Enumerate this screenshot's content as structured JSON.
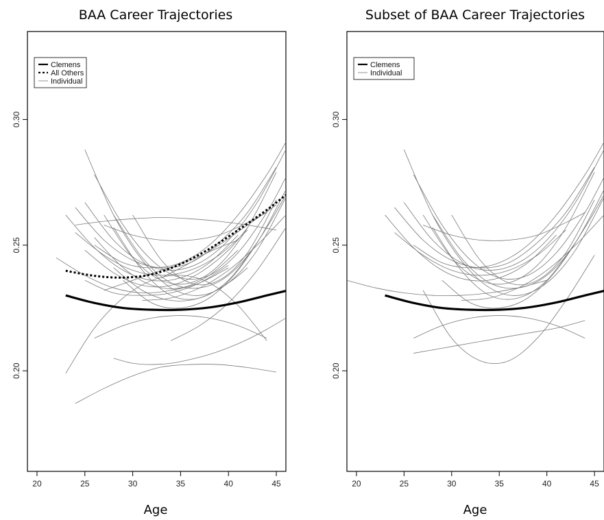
{
  "chart_data": [
    {
      "type": "line",
      "title": "BAA Career Trajectories",
      "xlabel": "Age",
      "ylabel": "",
      "xlim": [
        19,
        46
      ],
      "ylim": [
        0.16,
        0.335
      ],
      "xticks": [
        20,
        25,
        30,
        35,
        40,
        45
      ],
      "yticks": [
        0.2,
        0.25,
        0.3
      ],
      "legend": {
        "position": "top-left",
        "entries": [
          "Clemens",
          "All Others",
          "Individual"
        ]
      },
      "series": [
        {
          "name": "Clemens",
          "style": "thick-solid",
          "x": [
            23,
            26,
            29,
            32,
            35,
            38,
            41,
            44,
            46
          ],
          "y": [
            0.23,
            0.227,
            0.225,
            0.2243,
            0.2243,
            0.2252,
            0.2272,
            0.23,
            0.2318
          ]
        },
        {
          "name": "All Others",
          "style": "thick-dotted",
          "x": [
            23,
            26,
            29,
            32,
            35,
            38,
            41,
            44,
            46
          ],
          "y": [
            0.2398,
            0.2378,
            0.2371,
            0.2384,
            0.2425,
            0.2485,
            0.256,
            0.264,
            0.27
          ]
        },
        {
          "name": "Individual",
          "style": "thin",
          "x": [
            24,
            27,
            30,
            33,
            36,
            39,
            42,
            45
          ],
          "y": [
            0.265,
            0.252,
            0.244,
            0.241,
            0.243,
            0.251,
            0.263,
            0.281
          ]
        },
        {
          "style": "thin",
          "x": [
            25,
            28,
            31,
            34,
            37,
            40,
            43,
            46
          ],
          "y": [
            0.288,
            0.262,
            0.244,
            0.233,
            0.23,
            0.235,
            0.248,
            0.269
          ]
        },
        {
          "style": "thin",
          "x": [
            23,
            26,
            29,
            32,
            35,
            38,
            41,
            44
          ],
          "y": [
            0.199,
            0.217,
            0.229,
            0.236,
            0.238,
            0.235,
            0.226,
            0.212
          ]
        },
        {
          "style": "thin",
          "x": [
            24,
            27,
            30,
            33,
            36,
            39,
            42,
            45
          ],
          "y": [
            0.187,
            0.193,
            0.198,
            0.2015,
            0.2025,
            0.2025,
            0.2013,
            0.1995
          ]
        },
        {
          "style": "thin",
          "x": [
            28,
            30,
            32,
            34,
            36,
            38,
            40,
            42,
            44,
            46
          ],
          "y": [
            0.205,
            0.203,
            0.2025,
            0.203,
            0.2045,
            0.2065,
            0.2092,
            0.2125,
            0.2165,
            0.221
          ]
        },
        {
          "style": "thin",
          "x": [
            26,
            29,
            32,
            35,
            38,
            41,
            44,
            46
          ],
          "y": [
            0.278,
            0.258,
            0.244,
            0.237,
            0.238,
            0.247,
            0.263,
            0.277
          ]
        },
        {
          "style": "thin",
          "x": [
            25,
            28,
            31,
            34,
            37,
            40,
            42
          ],
          "y": [
            0.248,
            0.239,
            0.234,
            0.234,
            0.239,
            0.248,
            0.257
          ]
        },
        {
          "style": "thin",
          "x": [
            26,
            29,
            32,
            35,
            38,
            41,
            44,
            46
          ],
          "y": [
            0.25,
            0.243,
            0.241,
            0.243,
            0.25,
            0.262,
            0.278,
            0.291
          ]
        },
        {
          "style": "thin",
          "x": [
            24,
            27,
            30,
            33,
            36,
            39,
            42,
            45
          ],
          "y": [
            0.258,
            0.2595,
            0.2605,
            0.261,
            0.2605,
            0.2595,
            0.258,
            0.256
          ]
        },
        {
          "style": "thin",
          "x": [
            27,
            30,
            33,
            36,
            39,
            42,
            45
          ],
          "y": [
            0.262,
            0.245,
            0.236,
            0.235,
            0.242,
            0.257,
            0.279
          ]
        },
        {
          "style": "thin",
          "x": [
            23,
            26,
            29,
            32,
            35,
            38,
            41
          ],
          "y": [
            0.262,
            0.249,
            0.24,
            0.236,
            0.237,
            0.243,
            0.254
          ]
        },
        {
          "style": "thin",
          "x": [
            28,
            31,
            34,
            37,
            40,
            43,
            46
          ],
          "y": [
            0.262,
            0.245,
            0.235,
            0.233,
            0.238,
            0.251,
            0.272
          ]
        },
        {
          "style": "thin",
          "x": [
            26,
            29,
            32,
            35,
            38,
            41
          ],
          "y": [
            0.253,
            0.241,
            0.234,
            0.233,
            0.238,
            0.248
          ]
        },
        {
          "style": "thin",
          "x": [
            29,
            32,
            35,
            38,
            41,
            44,
            46
          ],
          "y": [
            0.236,
            0.227,
            0.225,
            0.229,
            0.24,
            0.257,
            0.27
          ]
        },
        {
          "style": "thin",
          "x": [
            26,
            29,
            32,
            35,
            38,
            41,
            44
          ],
          "y": [
            0.213,
            0.218,
            0.221,
            0.222,
            0.221,
            0.218,
            0.213
          ]
        },
        {
          "style": "thin",
          "x": [
            28,
            31,
            34,
            37,
            40,
            42
          ],
          "y": [
            0.241,
            0.232,
            0.228,
            0.229,
            0.235,
            0.241
          ]
        },
        {
          "style": "thin",
          "x": [
            24,
            27,
            30,
            33,
            36,
            39,
            42
          ],
          "y": [
            0.255,
            0.246,
            0.24,
            0.238,
            0.24,
            0.246,
            0.256
          ]
        },
        {
          "style": "thin",
          "x": [
            27,
            30,
            33,
            36,
            39,
            41
          ],
          "y": [
            0.232,
            0.236,
            0.24,
            0.244,
            0.249,
            0.252
          ]
        },
        {
          "style": "thin",
          "x": [
            30,
            33,
            36,
            39,
            42,
            45
          ],
          "y": [
            0.262,
            0.244,
            0.235,
            0.236,
            0.247,
            0.268
          ]
        },
        {
          "style": "thin",
          "x": [
            25,
            28,
            31,
            34,
            37,
            40,
            43,
            46
          ],
          "y": [
            0.267,
            0.252,
            0.243,
            0.24,
            0.243,
            0.252,
            0.267,
            0.288
          ]
        },
        {
          "style": "thin",
          "x": [
            22,
            25,
            28,
            31,
            34,
            37,
            40
          ],
          "y": [
            0.245,
            0.238,
            0.233,
            0.231,
            0.232,
            0.235,
            0.241
          ]
        },
        {
          "style": "thin",
          "x": [
            34,
            37,
            40,
            43,
            46
          ],
          "y": [
            0.212,
            0.218,
            0.227,
            0.24,
            0.257
          ]
        },
        {
          "style": "thin",
          "x": [
            33,
            36,
            39,
            42,
            45
          ],
          "y": [
            0.237,
            0.243,
            0.25,
            0.258,
            0.266
          ]
        },
        {
          "style": "thin",
          "x": [
            27,
            30,
            33,
            36,
            39,
            42,
            44
          ],
          "y": [
            0.258,
            0.254,
            0.252,
            0.252,
            0.254,
            0.259,
            0.263
          ]
        },
        {
          "style": "thin",
          "x": [
            31,
            34,
            37,
            40,
            43,
            46
          ],
          "y": [
            0.228,
            0.229,
            0.233,
            0.24,
            0.25,
            0.262
          ]
        },
        {
          "style": "thin",
          "x": [
            28,
            31,
            34,
            37,
            40,
            43
          ],
          "y": [
            0.257,
            0.24,
            0.23,
            0.229,
            0.236,
            0.251
          ]
        },
        {
          "style": "thin",
          "x": [
            25,
            28,
            31,
            34,
            37,
            40
          ],
          "y": [
            0.236,
            0.231,
            0.23,
            0.231,
            0.235,
            0.242
          ]
        }
      ]
    },
    {
      "type": "line",
      "title": "Subset of BAA Career Trajectories",
      "xlabel": "Age",
      "ylabel": "",
      "xlim": [
        19,
        46
      ],
      "ylim": [
        0.16,
        0.335
      ],
      "xticks": [
        20,
        25,
        30,
        35,
        40,
        45
      ],
      "yticks": [
        0.2,
        0.25,
        0.3
      ],
      "legend": {
        "position": "top-left",
        "entries": [
          "Clemens",
          "Individual"
        ]
      },
      "series": [
        {
          "name": "Clemens",
          "style": "thick-solid",
          "x": [
            23,
            26,
            29,
            32,
            35,
            38,
            41,
            44,
            46
          ],
          "y": [
            0.23,
            0.227,
            0.225,
            0.2243,
            0.2243,
            0.2252,
            0.2272,
            0.23,
            0.2318
          ]
        },
        {
          "name": "Individual",
          "style": "thin",
          "x": [
            24,
            27,
            30,
            33,
            36,
            39,
            42,
            45
          ],
          "y": [
            0.265,
            0.252,
            0.244,
            0.241,
            0.243,
            0.251,
            0.263,
            0.281
          ]
        },
        {
          "style": "thin",
          "x": [
            25,
            28,
            31,
            34,
            37,
            40,
            43,
            46
          ],
          "y": [
            0.288,
            0.262,
            0.244,
            0.233,
            0.23,
            0.235,
            0.248,
            0.269
          ]
        },
        {
          "style": "thin",
          "x": [
            26,
            29,
            32,
            35,
            38,
            41,
            44,
            46
          ],
          "y": [
            0.278,
            0.258,
            0.244,
            0.237,
            0.238,
            0.247,
            0.263,
            0.277
          ]
        },
        {
          "style": "thin",
          "x": [
            26,
            29,
            32,
            35,
            38,
            41,
            44,
            46
          ],
          "y": [
            0.25,
            0.243,
            0.241,
            0.243,
            0.25,
            0.262,
            0.278,
            0.291
          ]
        },
        {
          "style": "thin",
          "x": [
            27,
            30,
            33,
            36,
            39,
            42,
            45
          ],
          "y": [
            0.262,
            0.245,
            0.236,
            0.235,
            0.242,
            0.257,
            0.279
          ]
        },
        {
          "style": "thin",
          "x": [
            28,
            31,
            34,
            37,
            40,
            43,
            46
          ],
          "y": [
            0.262,
            0.245,
            0.235,
            0.233,
            0.238,
            0.251,
            0.272
          ]
        },
        {
          "style": "thin",
          "x": [
            29,
            32,
            35,
            38,
            41,
            44,
            46
          ],
          "y": [
            0.236,
            0.227,
            0.225,
            0.229,
            0.24,
            0.257,
            0.27
          ]
        },
        {
          "style": "thin",
          "x": [
            24,
            27,
            30,
            33,
            36,
            39,
            42
          ],
          "y": [
            0.255,
            0.246,
            0.24,
            0.238,
            0.24,
            0.246,
            0.256
          ]
        },
        {
          "style": "thin",
          "x": [
            25,
            28,
            31,
            34,
            37,
            40,
            43,
            46
          ],
          "y": [
            0.267,
            0.252,
            0.243,
            0.24,
            0.243,
            0.252,
            0.267,
            0.288
          ]
        },
        {
          "style": "thin",
          "x": [
            19,
            22,
            25,
            28,
            31,
            34,
            37,
            40
          ],
          "y": [
            0.236,
            0.233,
            0.231,
            0.23,
            0.23,
            0.231,
            0.233,
            0.236
          ]
        },
        {
          "style": "thin",
          "x": [
            26,
            29,
            32,
            35,
            38,
            41,
            44
          ],
          "y": [
            0.213,
            0.218,
            0.221,
            0.222,
            0.221,
            0.218,
            0.213
          ]
        },
        {
          "style": "thin",
          "x": [
            26,
            29,
            32,
            35,
            38,
            41,
            44
          ],
          "y": [
            0.207,
            0.209,
            0.211,
            0.213,
            0.215,
            0.217,
            0.22
          ]
        },
        {
          "style": "thin",
          "x": [
            27,
            30,
            33,
            36,
            39,
            42,
            45
          ],
          "y": [
            0.232,
            0.213,
            0.204,
            0.204,
            0.213,
            0.228,
            0.246
          ]
        },
        {
          "style": "thin",
          "x": [
            28,
            31,
            34,
            37,
            40,
            43
          ],
          "y": [
            0.257,
            0.24,
            0.23,
            0.229,
            0.236,
            0.251
          ]
        },
        {
          "style": "thin",
          "x": [
            30,
            33,
            36,
            39,
            42,
            45
          ],
          "y": [
            0.262,
            0.244,
            0.235,
            0.236,
            0.247,
            0.268
          ]
        },
        {
          "style": "thin",
          "x": [
            31,
            34,
            37,
            40,
            43,
            46
          ],
          "y": [
            0.228,
            0.229,
            0.233,
            0.24,
            0.25,
            0.262
          ]
        },
        {
          "style": "thin",
          "x": [
            23,
            26,
            29,
            32,
            35,
            38,
            41
          ],
          "y": [
            0.262,
            0.249,
            0.24,
            0.236,
            0.237,
            0.243,
            0.254
          ]
        },
        {
          "style": "thin",
          "x": [
            27,
            30,
            33,
            36,
            39,
            42,
            44
          ],
          "y": [
            0.258,
            0.254,
            0.252,
            0.252,
            0.254,
            0.259,
            0.263
          ]
        }
      ]
    }
  ]
}
